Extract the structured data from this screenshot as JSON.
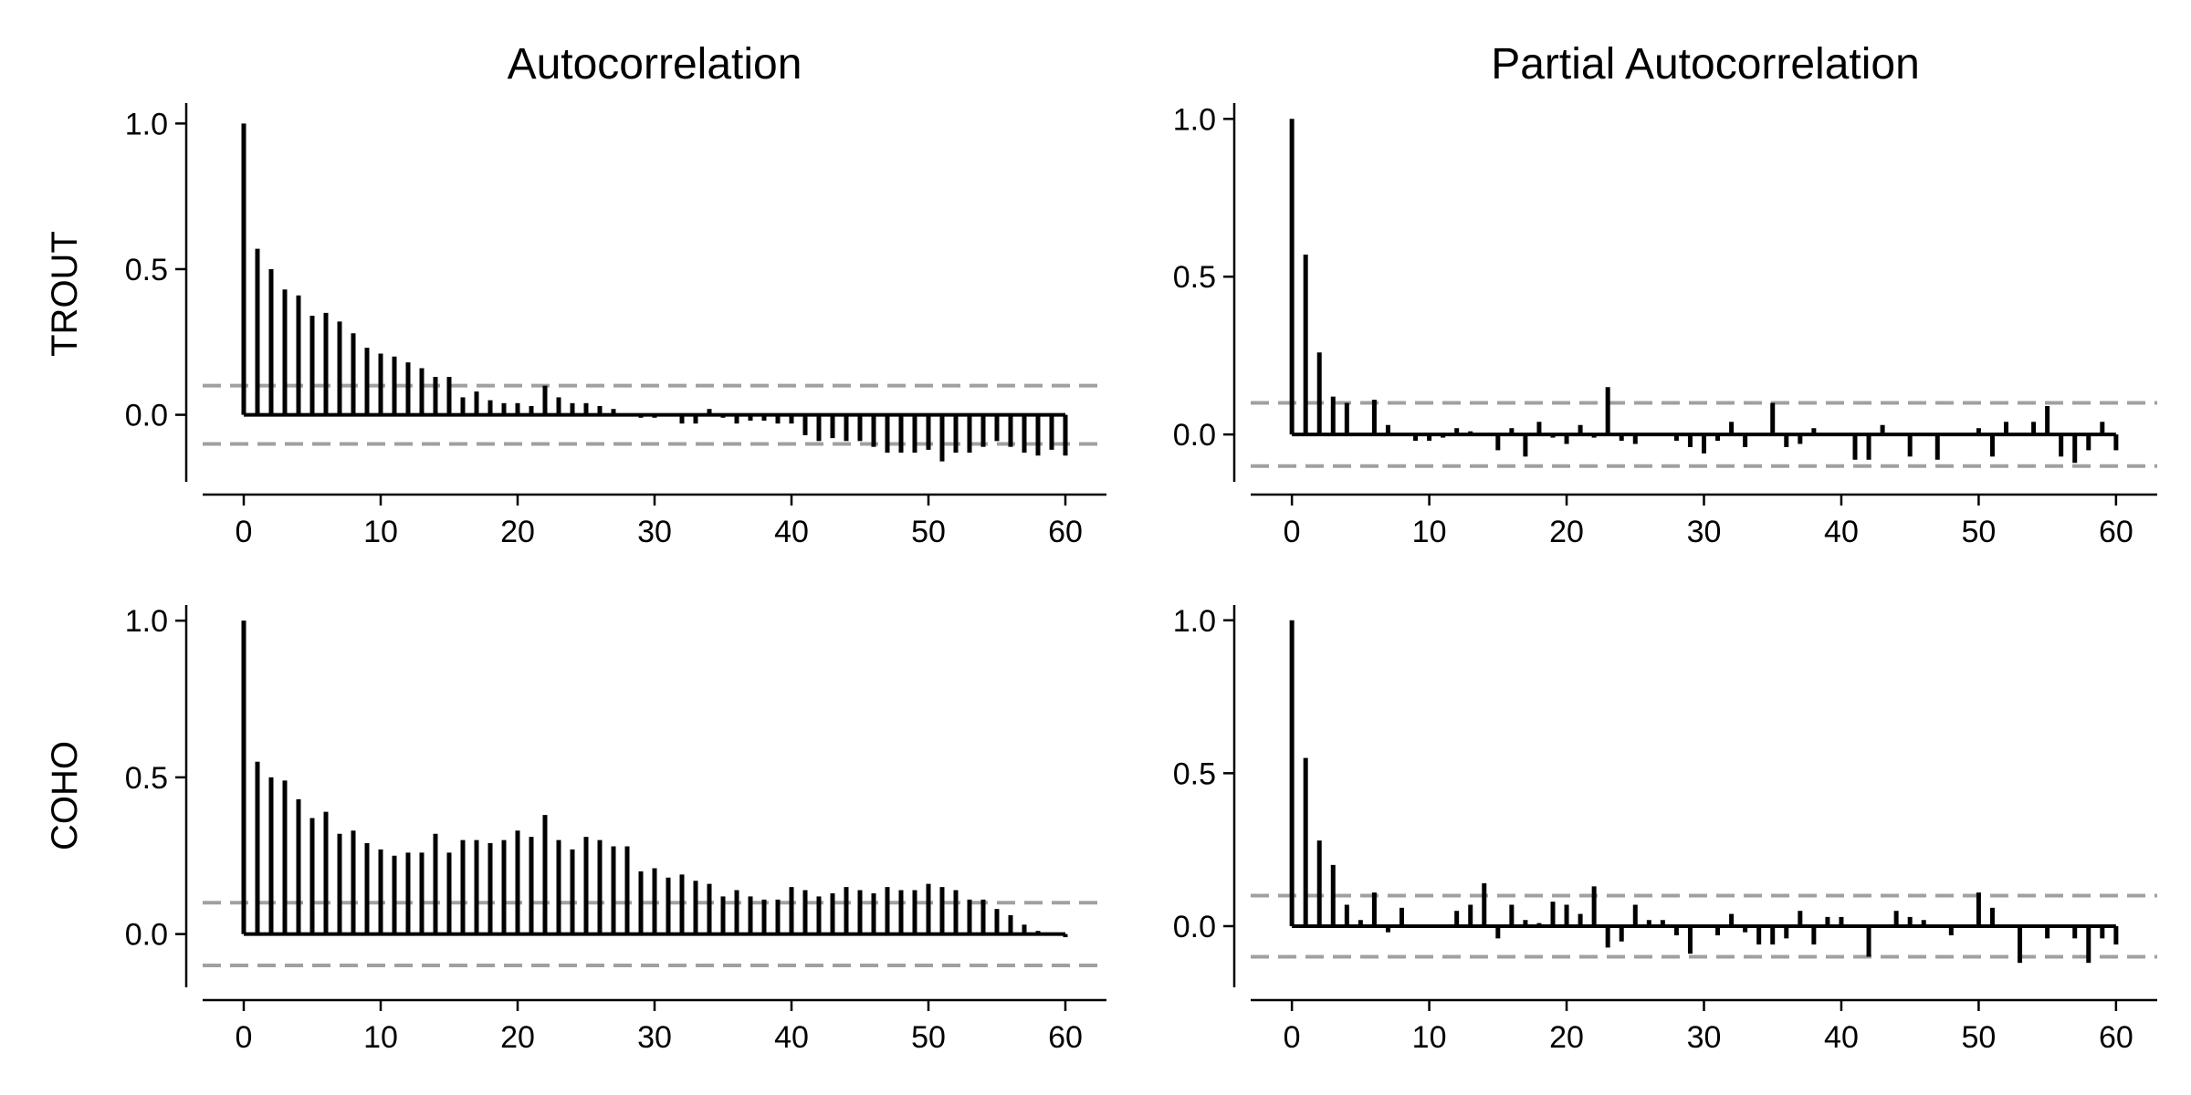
{
  "figure": {
    "col_titles": [
      "Autocorrelation",
      "Partial Autocorrelation"
    ],
    "row_labels": [
      "TROUT",
      "COHO"
    ]
  },
  "chart_data": [
    {
      "type": "bar",
      "row": "TROUT",
      "col": "Autocorrelation",
      "xlim": [
        -3,
        63
      ],
      "ylim": [
        -0.23,
        1.07
      ],
      "xticks": [
        0,
        10,
        20,
        30,
        40,
        50,
        60
      ],
      "yticks": [
        0.0,
        0.5,
        1.0
      ],
      "conf": 0.1,
      "values": [
        1.0,
        0.57,
        0.5,
        0.43,
        0.41,
        0.34,
        0.35,
        0.32,
        0.28,
        0.23,
        0.21,
        0.2,
        0.18,
        0.16,
        0.13,
        0.13,
        0.06,
        0.08,
        0.05,
        0.04,
        0.04,
        0.03,
        0.1,
        0.06,
        0.04,
        0.04,
        0.03,
        0.02,
        0.0,
        -0.01,
        -0.01,
        0.0,
        -0.03,
        -0.03,
        0.02,
        -0.01,
        -0.03,
        -0.02,
        -0.02,
        -0.03,
        -0.03,
        -0.07,
        -0.09,
        -0.08,
        -0.09,
        -0.09,
        -0.11,
        -0.13,
        -0.13,
        -0.13,
        -0.12,
        -0.16,
        -0.13,
        -0.13,
        -0.11,
        -0.09,
        -0.11,
        -0.13,
        -0.14,
        -0.12,
        -0.14
      ]
    },
    {
      "type": "bar",
      "row": "TROUT",
      "col": "Partial Autocorrelation",
      "xlim": [
        -3,
        63
      ],
      "ylim": [
        -0.15,
        1.05
      ],
      "xticks": [
        0,
        10,
        20,
        30,
        40,
        50,
        60
      ],
      "yticks": [
        0.0,
        0.5,
        1.0
      ],
      "conf": 0.1,
      "values": [
        1.0,
        0.57,
        0.26,
        0.12,
        0.1,
        0.0,
        0.11,
        0.03,
        0.0,
        -0.02,
        -0.02,
        -0.01,
        0.02,
        0.01,
        0.0,
        -0.05,
        0.02,
        -0.07,
        0.04,
        -0.01,
        -0.03,
        0.03,
        -0.01,
        0.15,
        -0.02,
        -0.03,
        0.0,
        0.0,
        -0.02,
        -0.04,
        -0.06,
        -0.02,
        0.04,
        -0.04,
        0.0,
        0.1,
        -0.04,
        -0.03,
        0.02,
        0.0,
        0.0,
        -0.08,
        -0.08,
        0.03,
        0.0,
        -0.07,
        0.0,
        -0.08,
        0.0,
        0.0,
        0.02,
        -0.07,
        0.04,
        0.0,
        0.04,
        0.09,
        -0.07,
        -0.09,
        -0.05,
        0.04,
        -0.05
      ]
    },
    {
      "type": "bar",
      "row": "COHO",
      "col": "Autocorrelation",
      "xlim": [
        -3,
        63
      ],
      "ylim": [
        -0.17,
        1.05
      ],
      "xticks": [
        0,
        10,
        20,
        30,
        40,
        50,
        60
      ],
      "yticks": [
        0.0,
        0.5,
        1.0
      ],
      "conf": 0.1,
      "values": [
        1.0,
        0.55,
        0.5,
        0.49,
        0.43,
        0.37,
        0.39,
        0.32,
        0.33,
        0.29,
        0.27,
        0.25,
        0.26,
        0.26,
        0.32,
        0.26,
        0.3,
        0.3,
        0.29,
        0.3,
        0.33,
        0.31,
        0.38,
        0.3,
        0.27,
        0.31,
        0.3,
        0.28,
        0.28,
        0.2,
        0.21,
        0.18,
        0.19,
        0.17,
        0.16,
        0.12,
        0.14,
        0.12,
        0.11,
        0.11,
        0.15,
        0.14,
        0.12,
        0.13,
        0.15,
        0.14,
        0.13,
        0.15,
        0.14,
        0.14,
        0.16,
        0.15,
        0.14,
        0.11,
        0.11,
        0.08,
        0.06,
        0.03,
        0.01,
        0.0,
        -0.01
      ]
    },
    {
      "type": "bar",
      "row": "COHO",
      "col": "Partial Autocorrelation",
      "xlim": [
        -3,
        63
      ],
      "ylim": [
        -0.2,
        1.05
      ],
      "xticks": [
        0,
        10,
        20,
        30,
        40,
        50,
        60
      ],
      "yticks": [
        0.0,
        0.5,
        1.0
      ],
      "conf": 0.1,
      "values": [
        1.0,
        0.55,
        0.28,
        0.2,
        0.07,
        0.02,
        0.11,
        -0.02,
        0.06,
        0.0,
        0.0,
        0.0,
        0.05,
        0.07,
        0.14,
        -0.04,
        0.07,
        0.02,
        0.01,
        0.08,
        0.07,
        0.04,
        0.13,
        -0.07,
        -0.05,
        0.07,
        0.02,
        0.02,
        -0.03,
        -0.09,
        0.0,
        -0.03,
        0.04,
        -0.02,
        -0.06,
        -0.06,
        -0.04,
        0.05,
        -0.06,
        0.03,
        0.03,
        0.0,
        -0.1,
        0.0,
        0.05,
        0.03,
        0.02,
        0.0,
        -0.03,
        0.0,
        0.11,
        0.06,
        0.0,
        -0.12,
        0.0,
        -0.04,
        0.0,
        -0.04,
        -0.12,
        -0.04,
        -0.06
      ]
    }
  ]
}
